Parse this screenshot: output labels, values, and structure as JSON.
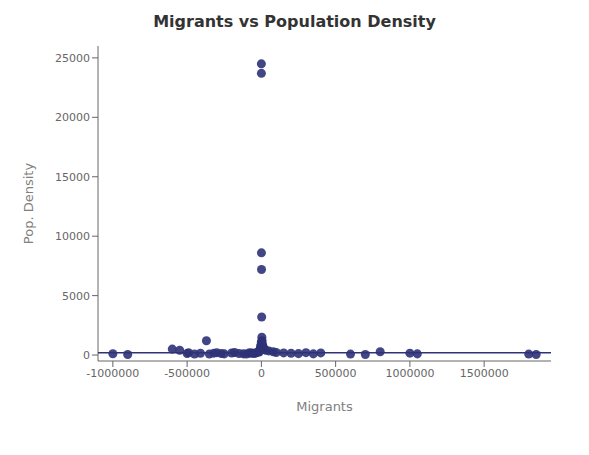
{
  "chart_data": {
    "type": "scatter",
    "title": "Migrants vs Population Density",
    "x_label": "Migrants",
    "y_label": "Pop. Density",
    "xlim": [
      -1100000,
      1950000
    ],
    "xticks": [
      -1000000,
      -500000,
      0,
      500000,
      1000000,
      1500000
    ],
    "ylim": [
      -500,
      26000
    ],
    "yticks": [
      0,
      5000,
      10000,
      15000,
      20000,
      25000
    ],
    "grid": false,
    "series": [
      {
        "type": "scatter",
        "color": "#2e3277",
        "marker": "circle",
        "x": [
          -1000000,
          -900000,
          -600000,
          -550000,
          -500000,
          -490000,
          -450000,
          -410000,
          -370000,
          -350000,
          -320000,
          -300000,
          -270000,
          -250000,
          -200000,
          -180000,
          -150000,
          -120000,
          -100000,
          -80000,
          -70000,
          -60000,
          -50000,
          -40000,
          -30000,
          -20000,
          -15000,
          -10000,
          -8000,
          -5000,
          -3000,
          -2000,
          -1000,
          -500,
          0,
          200,
          500,
          1000,
          2000,
          3000,
          5000,
          8000,
          10000,
          15000,
          20000,
          30000,
          50000,
          80000,
          100000,
          150000,
          200000,
          250000,
          300000,
          350000,
          400000,
          600000,
          700000,
          800000,
          1000000,
          1050000,
          1800000,
          1850000
        ],
        "values": [
          110,
          50,
          500,
          400,
          130,
          200,
          80,
          150,
          1200,
          90,
          160,
          200,
          130,
          100,
          170,
          220,
          130,
          100,
          80,
          200,
          150,
          180,
          140,
          160,
          200,
          300,
          250,
          400,
          500,
          700,
          600,
          800,
          900,
          1100,
          24500,
          23700,
          8600,
          7200,
          3200,
          1500,
          1200,
          900,
          700,
          600,
          500,
          400,
          350,
          280,
          220,
          180,
          150,
          120,
          200,
          100,
          180,
          80,
          50,
          280,
          160,
          100,
          80,
          50
        ]
      },
      {
        "type": "line",
        "color": "#2e3277",
        "line_style": "solid",
        "x": [
          -1100000,
          1950000
        ],
        "values": [
          200,
          200
        ]
      }
    ]
  }
}
